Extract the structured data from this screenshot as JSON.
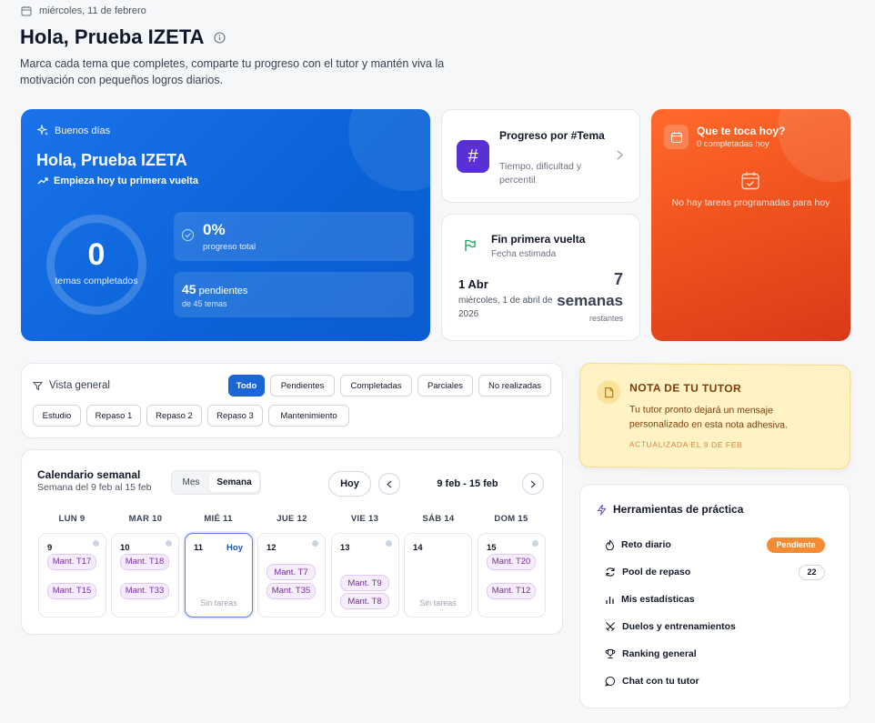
{
  "header": {
    "date": "miércoles, 11 de febrero",
    "title": "Hola, Prueba IZETA",
    "subtitle": "Marca cada tema que completes, comparte tu progreso con el tutor y mantén viva la motivación con pequeños logros diarios."
  },
  "hero": {
    "greeting": "Buenos días",
    "name": "Hola, Prueba IZETA",
    "first_round": "Empieza hoy tu primera vuelta",
    "completed_value": "0",
    "completed_label": "temas completados",
    "progress_value": "0%",
    "progress_label": "progreso total",
    "pending_value": "45",
    "pending_word": "pendientes",
    "pending_total": "de 45 temas",
    "progress_fraction": 0
  },
  "progress_card": {
    "title": "Progreso por #Tema",
    "subtitle": "Tiempo, dificultad y percentil",
    "icon": "#"
  },
  "finish_card": {
    "title": "Fin primera vuelta",
    "subtitle": "Fecha estimada",
    "date": "1 Abr",
    "date_full": "miércoles, 1 de abril de 2026",
    "weeks": "7",
    "weeks_label": "semanas",
    "remaining": "restantes"
  },
  "today_card": {
    "title": "Que te toca hoy?",
    "subtitle": "0 completadas hoy",
    "empty": "No hay tareas programadas para hoy"
  },
  "filters": {
    "label": "Vista general",
    "row1": [
      "Todo",
      "Pendientes",
      "Completadas",
      "Parciales",
      "No realizadas"
    ],
    "row2": [
      "Estudio",
      "Repaso 1",
      "Repaso 2",
      "Repaso 3",
      "Mantenimiento"
    ],
    "active": "Todo"
  },
  "calendar": {
    "title": "Calendario semanal",
    "subtitle": "Semana del 9 feb al 15 feb",
    "view_month": "Mes",
    "view_week": "Semana",
    "today_button": "Hoy",
    "range": "9 feb - 15 feb",
    "today_label": "Hoy",
    "no_tasks": "Sin tareas",
    "days": [
      {
        "header": "LUN 9",
        "num": "9",
        "tasks": [
          "Mant. T17",
          "Mant. T15"
        ]
      },
      {
        "header": "MAR 10",
        "num": "10",
        "tasks": [
          "Mant. T18",
          "Mant. T33"
        ]
      },
      {
        "header": "MIÉ 11",
        "num": "11",
        "tasks": []
      },
      {
        "header": "JUE 12",
        "num": "12",
        "tasks": [
          "Mant. T7",
          "Mant. T35"
        ]
      },
      {
        "header": "VIE 13",
        "num": "13",
        "tasks": [
          "Mant. T9",
          "Mant. T8"
        ]
      },
      {
        "header": "SÁB 14",
        "num": "14",
        "tasks": []
      },
      {
        "header": "DOM 15",
        "num": "15",
        "tasks": [
          "Mant. T20",
          "Mant. T12"
        ]
      }
    ]
  },
  "tutor_note": {
    "title": "NOTA DE TU TUTOR",
    "body": "Tu tutor pronto dejará un mensaje personalizado en esta nota adhesiva.",
    "updated": "ACTUALIZADA EL 9 DE FEB"
  },
  "tools": {
    "title": "Herramientas de práctica",
    "items": [
      {
        "label": "Reto diario",
        "icon": "flame-icon"
      },
      {
        "label": "Pool de repaso",
        "icon": "refresh-icon"
      },
      {
        "label": "Mis estadísticas",
        "icon": "bar-chart-icon"
      },
      {
        "label": "Duelos y entrenamientos",
        "icon": "swords-icon"
      },
      {
        "label": "Ranking general",
        "icon": "trophy-icon"
      },
      {
        "label": "Chat con tu tutor",
        "icon": "chat-icon"
      }
    ],
    "daily_badge": "Pendiente",
    "pool_count": "22"
  }
}
